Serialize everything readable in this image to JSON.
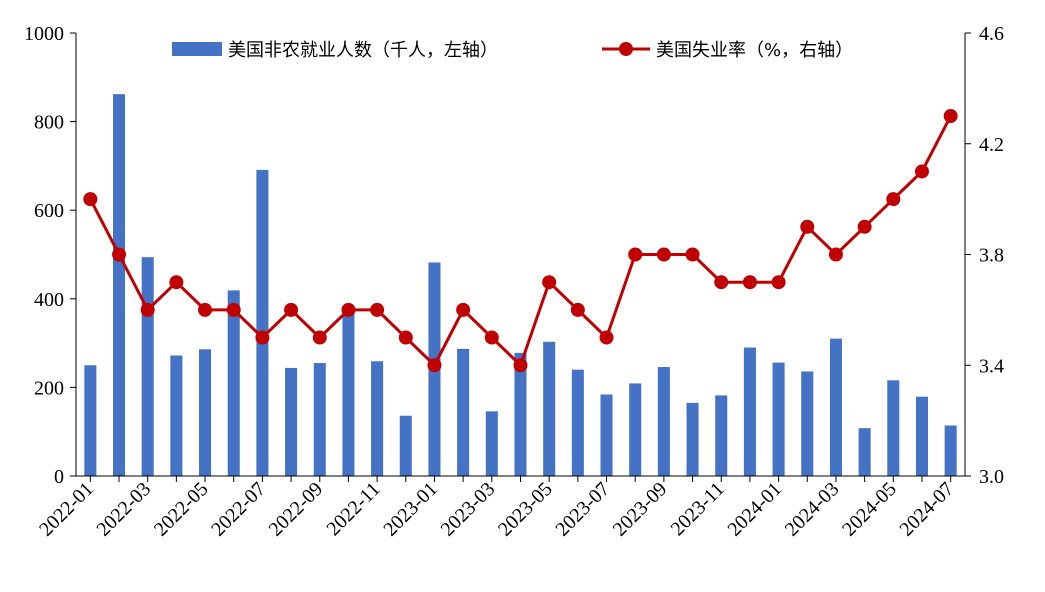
{
  "chart_data": {
    "type": "bar+line",
    "title": "",
    "categories": [
      "2022-01",
      "2022-02",
      "2022-03",
      "2022-04",
      "2022-05",
      "2022-06",
      "2022-07",
      "2022-08",
      "2022-09",
      "2022-10",
      "2022-11",
      "2022-12",
      "2023-01",
      "2023-02",
      "2023-03",
      "2023-04",
      "2023-05",
      "2023-06",
      "2023-07",
      "2023-08",
      "2023-09",
      "2023-10",
      "2023-11",
      "2023-12",
      "2024-01",
      "2024-02",
      "2024-03",
      "2024-04",
      "2024-05",
      "2024-06",
      "2024-07"
    ],
    "x_tick_labels": [
      "2022-01",
      "2022-03",
      "2022-05",
      "2022-07",
      "2022-09",
      "2022-11",
      "2023-01",
      "2023-03",
      "2023-05",
      "2023-07",
      "2023-09",
      "2023-11",
      "2024-01",
      "2024-03",
      "2024-05",
      "2024-07"
    ],
    "series": [
      {
        "name": "美国非农就业人数（千人，左轴）",
        "type": "bar",
        "axis": "left",
        "color": "#4472C4",
        "values": [
          250,
          862,
          494,
          272,
          286,
          419,
          691,
          244,
          255,
          378,
          259,
          136,
          482,
          287,
          146,
          278,
          303,
          240,
          184,
          209,
          246,
          165,
          182,
          290,
          256,
          236,
          310,
          108,
          216,
          179,
          114
        ]
      },
      {
        "name": "美国失业率（%，右轴）",
        "type": "line",
        "axis": "right",
        "color": "#C00000",
        "values": [
          4.0,
          3.8,
          3.6,
          3.7,
          3.6,
          3.6,
          3.5,
          3.6,
          3.5,
          3.6,
          3.6,
          3.5,
          3.4,
          3.6,
          3.5,
          3.4,
          3.7,
          3.6,
          3.5,
          3.8,
          3.8,
          3.8,
          3.7,
          3.7,
          3.7,
          3.9,
          3.8,
          3.9,
          4.0,
          4.1,
          4.3
        ]
      }
    ],
    "y_left": {
      "min": 0,
      "max": 1000,
      "ticks": [
        0,
        200,
        400,
        600,
        800,
        1000
      ]
    },
    "y_right": {
      "min": 3.0,
      "max": 4.6,
      "ticks": [
        "3.0",
        "3.4",
        "3.8",
        "4.2",
        "4.6"
      ]
    },
    "legend_position": "top",
    "grid": false
  }
}
